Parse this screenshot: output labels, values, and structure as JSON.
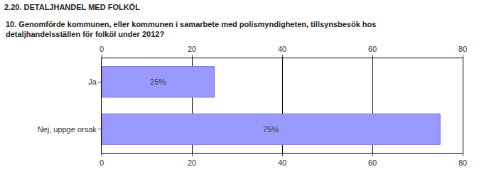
{
  "chart_data": {
    "type": "bar",
    "orientation": "horizontal",
    "title": "2.20. DETALJHANDEL MED FOLKÖL",
    "subtitle": "10. Genomförde kommunen, eller kommunen i samarbete med polismyndigheten, tillsynsbesök hos detaljhandelsställen för folköl under 2012?",
    "categories": [
      "Ja",
      "Nej, uppge orsak"
    ],
    "values": [
      25,
      75
    ],
    "value_labels": [
      "25%",
      "75%"
    ],
    "data_labels": true,
    "color": "#9999ff",
    "xlim": [
      0,
      80
    ],
    "xticks": [
      0,
      20,
      40,
      60,
      80
    ],
    "grid": true
  }
}
